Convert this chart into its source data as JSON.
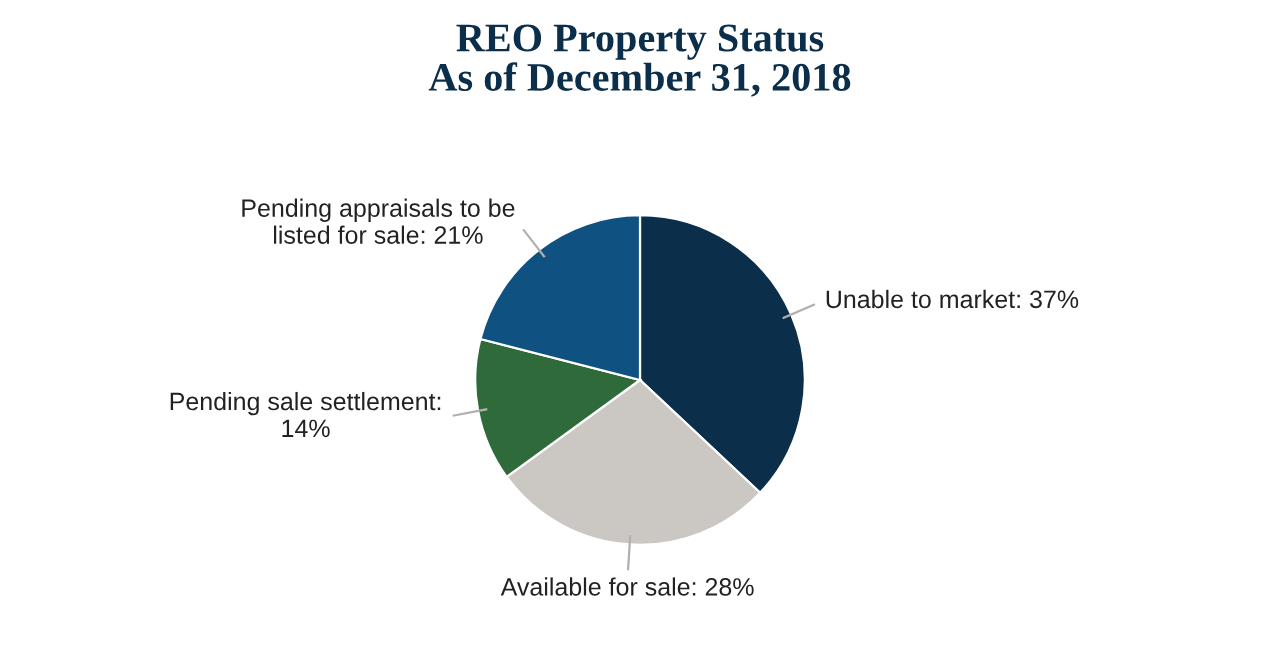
{
  "chart_data": {
    "type": "pie",
    "title": "REO Property Status\nAs of December 31, 2018",
    "categories": [
      "Unable to market: 37%",
      "Available for sale: 28%",
      "Pending sale settlement:\n14%",
      "Pending appraisals to be\nlisted for sale: 21%"
    ],
    "values": [
      37,
      28,
      14,
      21
    ],
    "colors": [
      "#0b2f4b",
      "#cbc8c4",
      "#2f6b3a",
      "#0f5281"
    ],
    "legend": false
  }
}
